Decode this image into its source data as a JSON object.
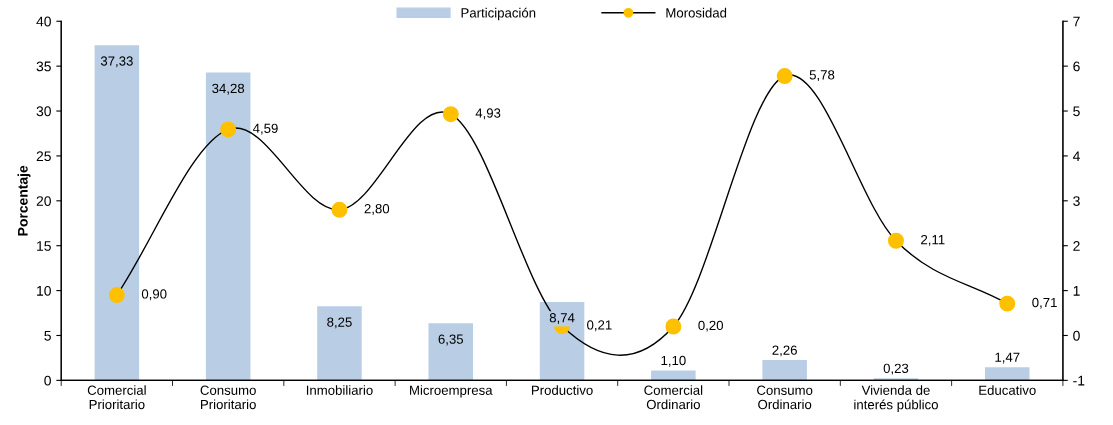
{
  "chart_data": {
    "type": "bar",
    "categories": [
      "Comercial\nPrioritario",
      "Consumo\nPrioritario",
      "Inmobiliario",
      "Microempresa",
      "Productivo",
      "Comercial\nOrdinario",
      "Consumo\nOrdinario",
      "Vivienda de\ninterés público",
      "Educativo"
    ],
    "ylabel": "Porcentaje",
    "ylim": [
      0,
      40
    ],
    "yticks": [
      0,
      5,
      10,
      15,
      20,
      25,
      30,
      35,
      40
    ],
    "y2lim": [
      -1,
      7
    ],
    "y2ticks": [
      {
        "value": -1,
        "label": "-1"
      },
      0,
      1,
      2,
      3,
      4,
      5,
      6,
      7
    ],
    "legend": "top",
    "grid": false,
    "data_labels": true,
    "series": [
      {
        "name": "Participación",
        "color": "#b9cde5",
        "values": [
          37.33,
          34.28,
          8.25,
          6.35,
          8.74,
          1.1,
          2.26,
          0.23,
          1.47
        ],
        "value_labels": [
          "37,33",
          "34,28",
          "8,25",
          "6,35",
          "8,74",
          "1,10",
          "2,26",
          "0,23",
          "1,47"
        ]
      },
      {
        "name": "Morosidad",
        "type": "line",
        "axis": "y2",
        "color": "#000000",
        "colors": [
          "#ffc000",
          "#ffc000",
          "#ffc000",
          "#ffc000",
          "#ffc000",
          "#ffc000",
          "#ffc000",
          "#ffc000",
          "#ffc000"
        ],
        "marker": "circle",
        "line_style": "solid",
        "values": [
          0.9,
          4.59,
          2.8,
          4.93,
          0.21,
          0.2,
          5.78,
          2.11,
          0.71
        ],
        "value_labels": [
          "0,90",
          "4,59",
          "2,80",
          "4,93",
          "0,21",
          "0,20",
          "5,78",
          "2,11",
          "0,71"
        ]
      }
    ]
  }
}
